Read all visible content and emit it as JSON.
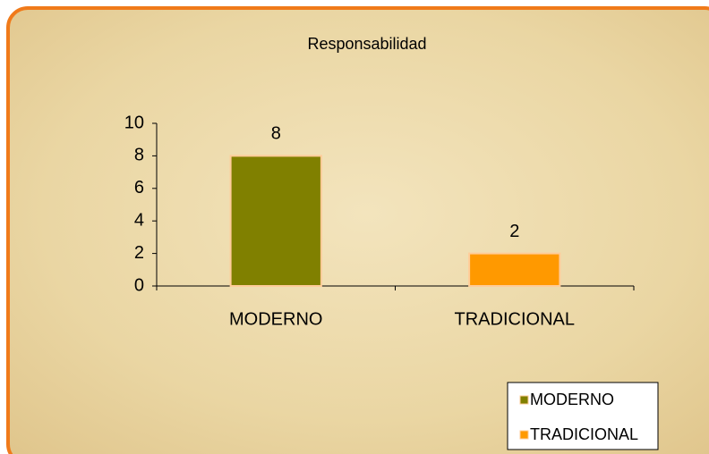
{
  "chart_data": {
    "type": "bar",
    "title": "Responsabilidad",
    "categories": [
      "MODERNO",
      "TRADICIONAL"
    ],
    "values": [
      8,
      2
    ],
    "colors": [
      "#808000",
      "#ff9900"
    ],
    "ylim": [
      0,
      10
    ],
    "yticks": [
      0,
      2,
      4,
      6,
      8,
      10
    ],
    "legend": "bottom-right"
  }
}
